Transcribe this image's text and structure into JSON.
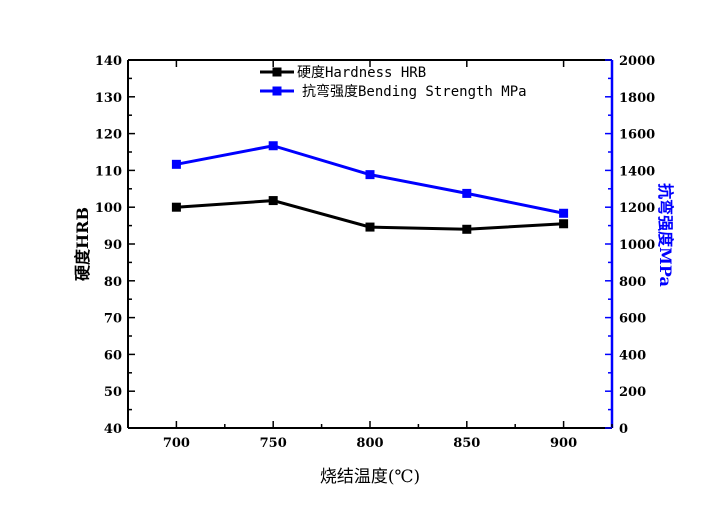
{
  "chart_data": {
    "type": "line",
    "xlabel": "烧结温度(℃)",
    "ylabel_left": "硬度HRB",
    "ylabel_right": "抗弯强度MPa",
    "xlim": [
      675,
      925
    ],
    "ylim_left": [
      40,
      140
    ],
    "ylim_right": [
      0,
      2000
    ],
    "x": [
      700,
      750,
      800,
      850,
      900
    ],
    "x_ticks": [
      "700",
      "750",
      "800",
      "850",
      "900"
    ],
    "y_left_ticks": [
      "40",
      "50",
      "60",
      "70",
      "80",
      "90",
      "100",
      "110",
      "120",
      "130",
      "140"
    ],
    "y_right_ticks": [
      "0",
      "200",
      "400",
      "600",
      "800",
      "1000",
      "1200",
      "1400",
      "1600",
      "1800",
      "2000"
    ],
    "legend_position": "top-center",
    "grid": false,
    "series": [
      {
        "name": "硬度Hardness HRB",
        "axis": "left",
        "color": "#000000",
        "marker": "square",
        "values": [
          100.0,
          101.8,
          94.6,
          94.0,
          95.5
        ]
      },
      {
        "name": "抗弯强度Bending Strength MPa",
        "axis": "right",
        "color": "#0000ff",
        "marker": "square",
        "values": [
          1433,
          1534,
          1377,
          1275,
          1167
        ]
      }
    ]
  }
}
